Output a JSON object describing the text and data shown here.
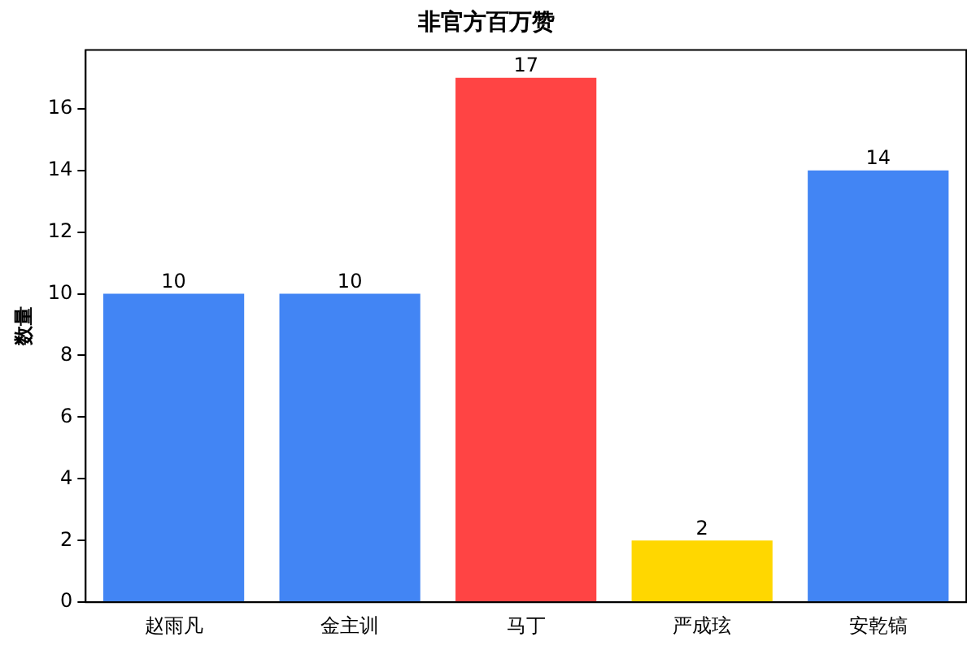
{
  "chart_data": {
    "type": "bar",
    "title": "非官方百万赞",
    "ylabel": "数量",
    "categories": [
      "赵雨凡",
      "金主训",
      "马丁",
      "严成玹",
      "安乾镐"
    ],
    "values": [
      10,
      10,
      17,
      2,
      14
    ],
    "colors": [
      "#4285f4",
      "#4285f4",
      "#ff4444",
      "#ffd700",
      "#4285f4"
    ],
    "ylim": [
      0,
      17.9
    ],
    "yticks": [
      0,
      2,
      4,
      6,
      8,
      10,
      12,
      14,
      16
    ],
    "data_labels": true,
    "grid": false,
    "legend": false
  }
}
